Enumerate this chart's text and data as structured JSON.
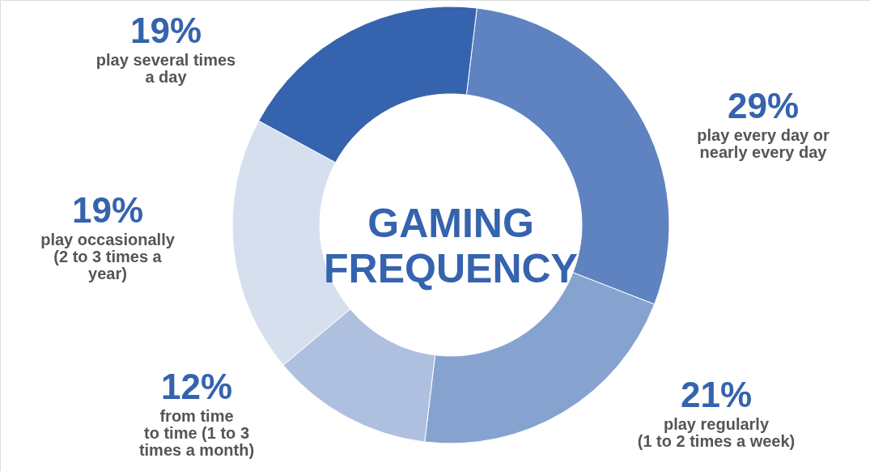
{
  "chart_data": {
    "type": "donut",
    "title": "GAMING FREQUENCY",
    "categories": [
      "play every day or\nnearly every day",
      "play regularly\n(1 to 2 times a week)",
      "from time\nto time (1 to 3\ntimes a month)",
      "play occasionally\n(2 to 3 times a\nyear)",
      "play several times\na day"
    ],
    "values": [
      29,
      21,
      12,
      19,
      19
    ],
    "value_labels": [
      "29%",
      "21%",
      "12%",
      "19%",
      "19%"
    ],
    "colors": [
      "#5f82c0",
      "#86a3d0",
      "#aebfe0",
      "#d6dfee",
      "#3563ae"
    ]
  }
}
